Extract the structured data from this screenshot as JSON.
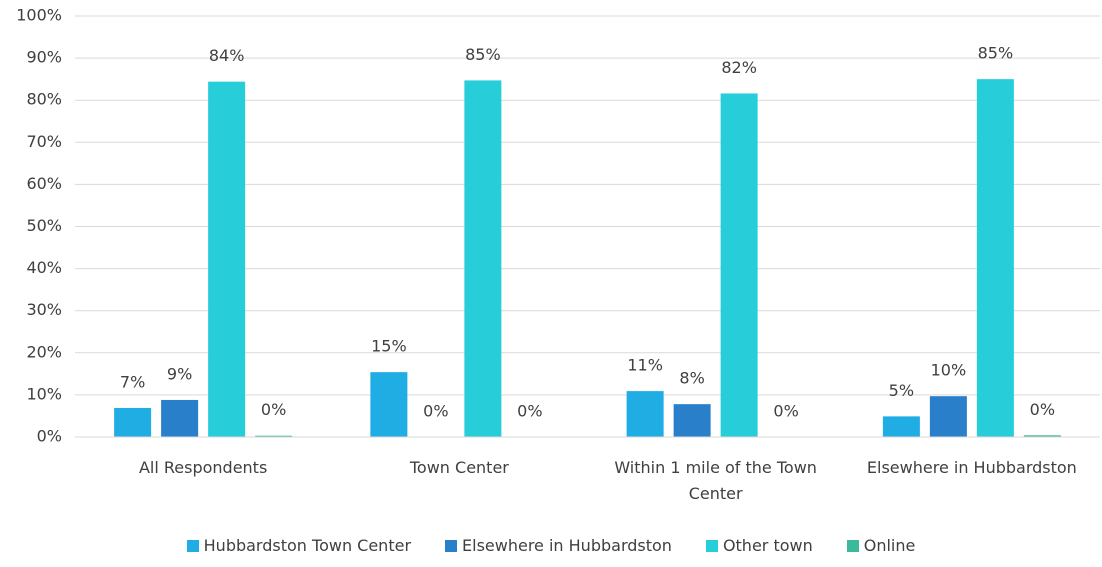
{
  "chart_data": {
    "type": "bar",
    "categories": [
      "All Respondents",
      "Town Center",
      "Within 1 mile of the Town Center",
      "Elsewhere in Hubbardston"
    ],
    "series": [
      {
        "name": "Hubbardston Town Center",
        "color": "#1fade4",
        "values": [
          6.9,
          15.4,
          10.9,
          4.9
        ],
        "value_labels": [
          "7%",
          "15%",
          "11%",
          "5%"
        ]
      },
      {
        "name": "Elsewhere in Hubbardston",
        "color": "#2a7fca",
        "values": [
          8.8,
          0,
          7.8,
          9.7
        ],
        "value_labels": [
          "9%",
          "0%",
          "8%",
          "10%"
        ]
      },
      {
        "name": "Other town",
        "color": "#27cdd9",
        "values": [
          84.4,
          84.7,
          81.6,
          85.0
        ],
        "value_labels": [
          "84%",
          "85%",
          "82%",
          "85%"
        ]
      },
      {
        "name": "Online",
        "color": "#3cb89a",
        "values": [
          0.3,
          0,
          0,
          0.4
        ],
        "value_labels": [
          "0%",
          "0%",
          "0%",
          "0%"
        ]
      }
    ],
    "ylim": [
      0,
      100
    ],
    "yticks": [
      {
        "value": 0,
        "label": "0%"
      },
      {
        "value": 10,
        "label": "10%"
      },
      {
        "value": 20,
        "label": "20%"
      },
      {
        "value": 30,
        "label": "30%"
      },
      {
        "value": 40,
        "label": "40%"
      },
      {
        "value": 50,
        "label": "50%"
      },
      {
        "value": 60,
        "label": "60%"
      },
      {
        "value": 70,
        "label": "70%"
      },
      {
        "value": 80,
        "label": "80%"
      },
      {
        "value": 90,
        "label": "90%"
      },
      {
        "value": 100,
        "label": "100%"
      }
    ],
    "grid": true,
    "legend": "bottom"
  }
}
